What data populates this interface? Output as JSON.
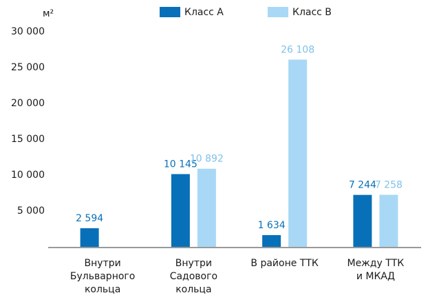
{
  "chart_data": {
    "type": "bar",
    "y_unit": "м²",
    "categories": [
      [
        "Внутри",
        "Бульварного",
        "кольца"
      ],
      [
        "Внутри",
        "Садового",
        "кольца"
      ],
      [
        "В районе ТТК"
      ],
      [
        "Между ТТК",
        "и МКАД"
      ]
    ],
    "series": [
      {
        "name": "Класс А",
        "color": "#0870b8",
        "values": [
          2594,
          10145,
          1634,
          7244
        ],
        "value_labels": [
          "2 594",
          "10 145",
          "1 634",
          "7 244"
        ]
      },
      {
        "name": "Класс В",
        "color": "#a8d8f5",
        "values": [
          null,
          10892,
          26108,
          7258
        ],
        "value_labels": [
          null,
          "10 892",
          "26 108",
          "7 258"
        ]
      }
    ],
    "ylim": [
      0,
      30000
    ],
    "yticks": [
      {
        "value": 5000,
        "label": "5 000"
      },
      {
        "value": 10000,
        "label": "10 000"
      },
      {
        "value": 15000,
        "label": "15 000"
      },
      {
        "value": 20000,
        "label": "20 000"
      },
      {
        "value": 25000,
        "label": "25 000"
      },
      {
        "value": 30000,
        "label": "30 000"
      }
    ],
    "legend": "top"
  }
}
